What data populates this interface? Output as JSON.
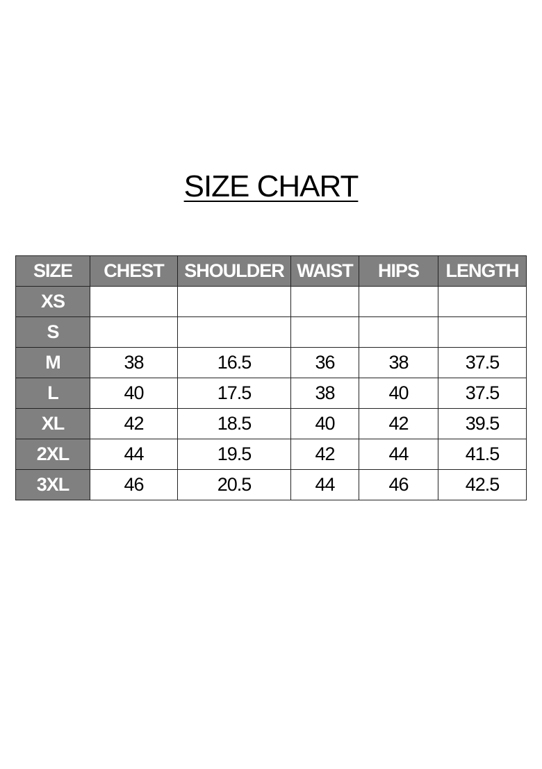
{
  "title": "SIZE CHART",
  "colors": {
    "header_bg": "#808080",
    "header_text": "#ffffff"
  },
  "table": {
    "headers": [
      "SIZE",
      "CHEST",
      "SHOULDER",
      "WAIST",
      "HIPS",
      "LENGTH"
    ],
    "rows": [
      [
        "XS",
        "",
        "",
        "",
        "",
        ""
      ],
      [
        "S",
        "",
        "",
        "",
        "",
        ""
      ],
      [
        "M",
        "38",
        "16.5",
        "36",
        "38",
        "37.5"
      ],
      [
        "L",
        "40",
        "17.5",
        "38",
        "40",
        "37.5"
      ],
      [
        "XL",
        "42",
        "18.5",
        "40",
        "42",
        "39.5"
      ],
      [
        "2XL",
        "44",
        "19.5",
        "42",
        "44",
        "41.5"
      ],
      [
        "3XL",
        "46",
        "20.5",
        "44",
        "46",
        "42.5"
      ]
    ]
  }
}
